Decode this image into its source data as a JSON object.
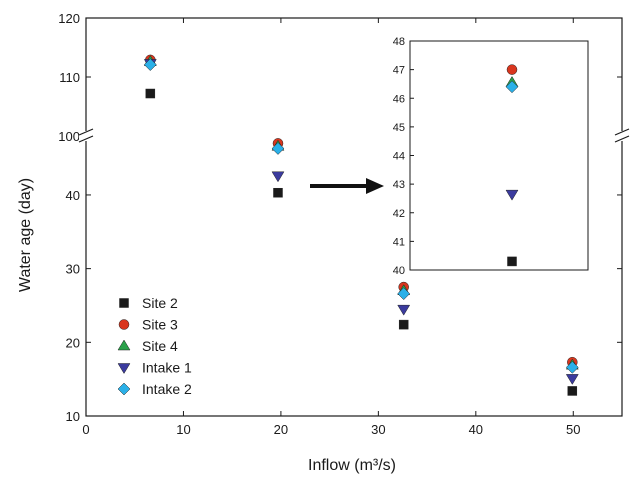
{
  "chart_data": [
    {
      "type": "scatter",
      "xlabel": "Inflow (m³/s)",
      "ylabel": "Water age (day)",
      "xlim": [
        0,
        55
      ],
      "xticks": [
        "0",
        "10",
        "20",
        "30",
        "40",
        "50"
      ],
      "y_axis_break": {
        "lower_range": [
          10,
          48
        ],
        "upper_range": [
          100,
          120
        ]
      },
      "yticks": [
        "10",
        "20",
        "30",
        "40",
        "100",
        "110",
        "120"
      ],
      "x": [
        6.6,
        19.7,
        32.6,
        49.9
      ],
      "series": [
        {
          "name": "Site 2",
          "marker": "square",
          "color": "#1a1a1a",
          "values": [
            107.2,
            40.3,
            22.4,
            13.4
          ]
        },
        {
          "name": "Site 3",
          "marker": "circle",
          "color": "#d9361e",
          "values": [
            112.9,
            47.0,
            27.5,
            17.3
          ]
        },
        {
          "name": "Site 4",
          "marker": "triangle-up",
          "color": "#2aa14a",
          "values": [
            112.6,
            46.6,
            27.0,
            16.9
          ]
        },
        {
          "name": "Intake 1",
          "marker": "triangle-down",
          "color": "#3b3b9e",
          "values": [
            112.3,
            42.6,
            24.5,
            15.1
          ]
        },
        {
          "name": "Intake 2",
          "marker": "diamond",
          "color": "#2ab0e8",
          "values": [
            112.1,
            46.3,
            26.6,
            16.6
          ]
        }
      ],
      "legend_position": "bottom-left",
      "annotation": "arrow pointing from the Inflow 20 cluster to the inset"
    },
    {
      "type": "scatter",
      "inset": true,
      "ylim": [
        40,
        48
      ],
      "yticks": [
        "40",
        "41",
        "42",
        "43",
        "44",
        "45",
        "46",
        "47",
        "48"
      ],
      "x": [
        40.8
      ],
      "series": [
        {
          "name": "Site 2",
          "marker": "square",
          "color": "#1a1a1a",
          "values": [
            40.3
          ]
        },
        {
          "name": "Site 3",
          "marker": "circle",
          "color": "#d9361e",
          "values": [
            47.0
          ]
        },
        {
          "name": "Site 4",
          "marker": "triangle-up",
          "color": "#2aa14a",
          "values": [
            46.55
          ]
        },
        {
          "name": "Intake 1",
          "marker": "triangle-down",
          "color": "#3b3b9e",
          "values": [
            42.65
          ]
        },
        {
          "name": "Intake 2",
          "marker": "diamond",
          "color": "#2ab0e8",
          "values": [
            46.4
          ]
        }
      ]
    }
  ]
}
